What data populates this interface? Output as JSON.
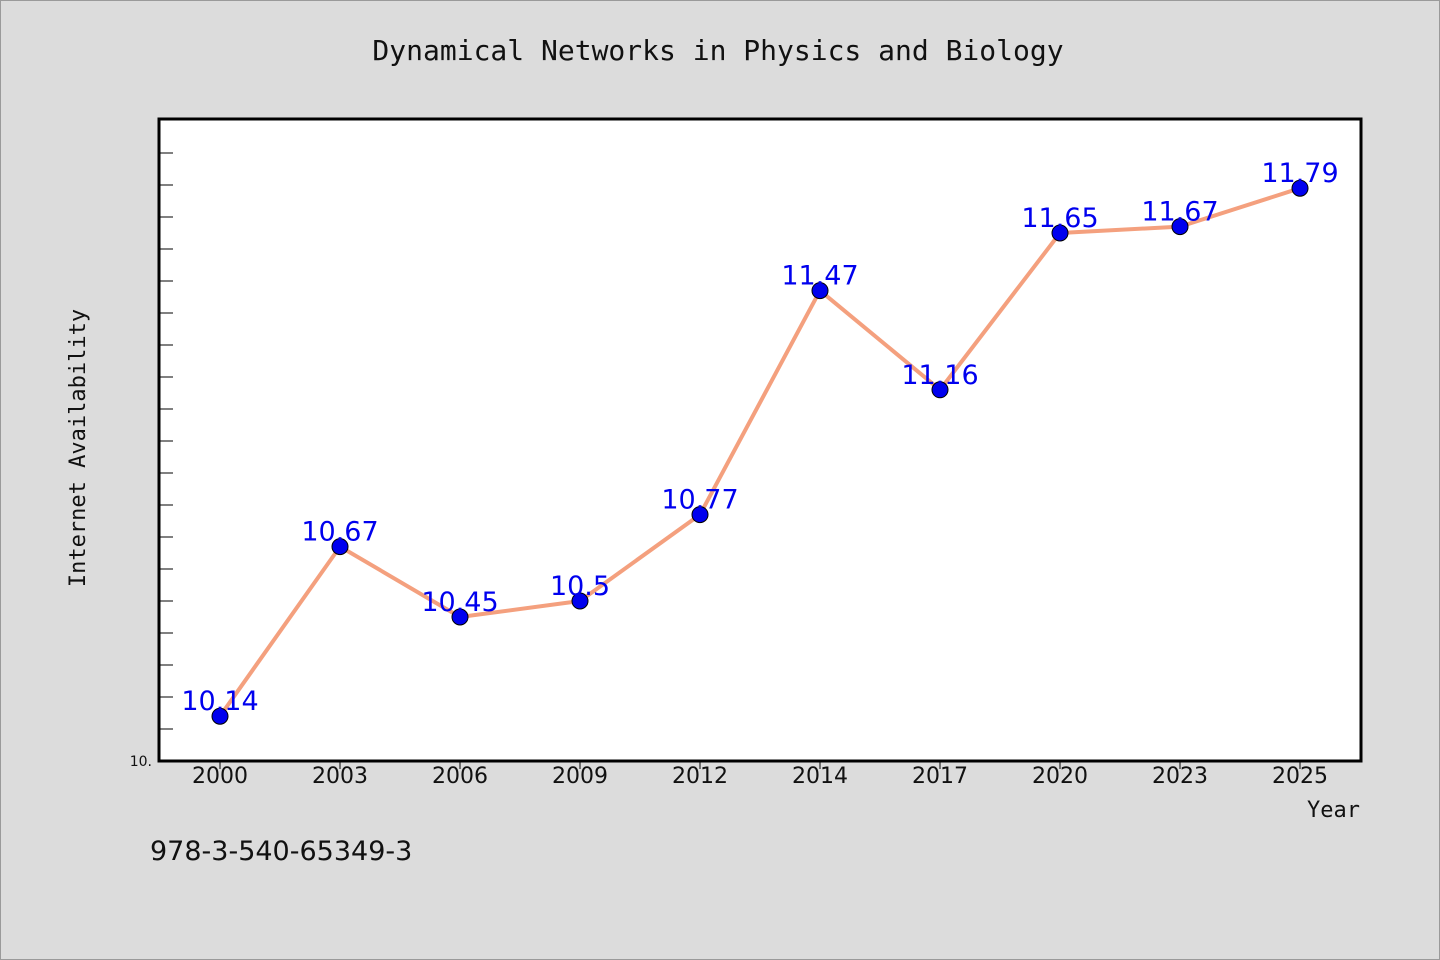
{
  "chart_data": {
    "type": "line",
    "title": "Dynamical Networks in Physics and Biology",
    "xlabel": "Year",
    "ylabel": "Internet Availability",
    "categories": [
      "2000",
      "2003",
      "2006",
      "2009",
      "2012",
      "2014",
      "2017",
      "2020",
      "2023",
      "2025"
    ],
    "series": [
      {
        "values": [
          10.14,
          10.67,
          10.45,
          10.5,
          10.77,
          11.47,
          11.16,
          11.65,
          11.67,
          11.79
        ],
        "data_labels": [
          "10.14",
          "10.67",
          "10.45",
          "10.5",
          "10.77",
          "11.47",
          "11.16",
          "11.65",
          "11.67",
          "11.79"
        ],
        "line_color": "#f4a07e",
        "marker_color": "#0000ee",
        "label_color": "#0000ee"
      }
    ],
    "ylim": [
      10.0,
      12.0
    ],
    "y_tick_label": "10.",
    "grid": false,
    "legend": "none"
  },
  "footer": {
    "isbn": "978-3-540-65349-3"
  },
  "colors": {
    "background": "#dcdcdc",
    "plot_area": "#ffffff",
    "axis": "#000000"
  }
}
